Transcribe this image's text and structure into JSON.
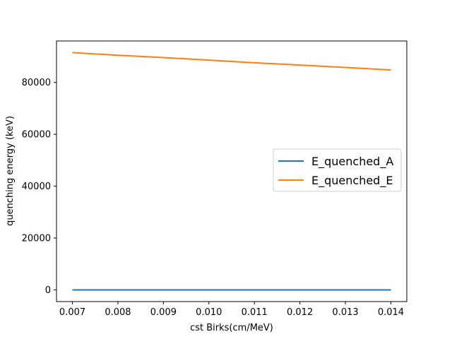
{
  "chart_data": {
    "type": "line",
    "xlabel": "cst Birks(cm/MeV)",
    "ylabel": "quenching energy (keV)",
    "x": [
      0.007,
      0.008,
      0.009,
      0.01,
      0.011,
      0.012,
      0.013,
      0.014
    ],
    "series": [
      {
        "name": "E_quenched_A",
        "color": "#1f77b4",
        "values": [
          0,
          0,
          0,
          0,
          0,
          0,
          0,
          0
        ]
      },
      {
        "name": "E_quenched_E",
        "color": "#ff7f0e",
        "values": [
          91500,
          90500,
          89600,
          88600,
          87600,
          86700,
          85800,
          84800
        ]
      }
    ],
    "xlim": [
      0.00665,
      0.01435
    ],
    "ylim": [
      -4500,
      96000
    ],
    "xticks": [
      0.007,
      0.008,
      0.009,
      0.01,
      0.011,
      0.012,
      0.013,
      0.014
    ],
    "xtick_labels": [
      "0.007",
      "0.008",
      "0.009",
      "0.010",
      "0.011",
      "0.012",
      "0.013",
      "0.014"
    ],
    "yticks": [
      0,
      20000,
      40000,
      60000,
      80000
    ],
    "ytick_labels": [
      "0",
      "20000",
      "40000",
      "60000",
      "80000"
    ],
    "grid": false,
    "legend_position": "center-right"
  }
}
